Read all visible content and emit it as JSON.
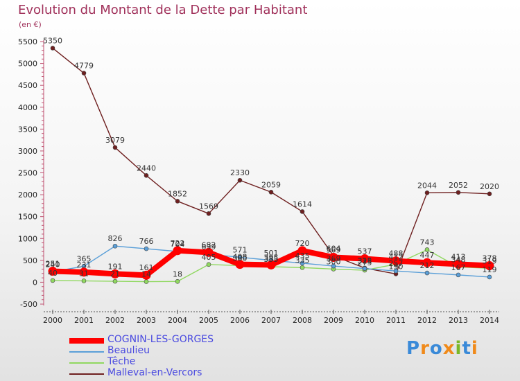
{
  "chart_data": {
    "type": "line",
    "title": "Evolution du Montant de la Dette par Habitant",
    "unit_label": "(en €)",
    "x": [
      "2000",
      "2001",
      "2002",
      "2003",
      "2004",
      "2005",
      "2006",
      "2007",
      "2008",
      "2009",
      "2010",
      "2011",
      "2012",
      "2013",
      "2014"
    ],
    "ylim": [
      -500,
      5500
    ],
    "yticks": [
      -500,
      0,
      500,
      1000,
      1500,
      2000,
      2500,
      3000,
      3500,
      4000,
      4500,
      5000,
      5500
    ],
    "grid": false,
    "legend_position": "bottom-left",
    "series": [
      {
        "name": "COGNIN-LES-GORGES",
        "color": "#ff0000",
        "values": [
          251,
          231,
          191,
          161,
          722,
          682,
          408,
          395,
          720,
          569,
          537,
          488,
          447,
          413,
          378
        ],
        "labels": [
          "251",
          "231",
          "191",
          "161",
          "722",
          "682",
          "408",
          "395",
          "720",
          "569",
          "537",
          "488",
          "447",
          "413",
          "378"
        ]
      },
      {
        "name": "Beaulieu",
        "color": "#5a9fd8",
        "values": [
          240,
          365,
          826,
          766,
          704,
          639,
          571,
          501,
          435,
          369,
          313,
          257,
          212,
          167,
          119
        ],
        "labels": [
          "240",
          "365",
          "826",
          "766",
          "704",
          "639",
          "571",
          "501",
          "435",
          "369",
          "313",
          "257",
          "212",
          "167",
          "119"
        ]
      },
      {
        "name": "Têche",
        "color": "#90d860",
        "values": [
          40,
          31,
          21,
          14,
          18,
          405,
          380,
          355,
          335,
          300,
          275,
          412,
          743,
          348,
          319
        ],
        "labels": [
          "40",
          "31",
          "21",
          "14",
          "18",
          "405",
          "380",
          "355",
          "335",
          "300",
          "275",
          "412",
          "743",
          "348",
          "319"
        ]
      },
      {
        "name": "Malleval-en-Vercors",
        "color": "#6e1f1f",
        "values": [
          5350,
          4779,
          3079,
          2440,
          1852,
          1569,
          2330,
          2059,
          1614,
          604,
          325,
          190,
          2044,
          2052,
          2020
        ],
        "labels": [
          "5350",
          "4779",
          "3079",
          "2440",
          "1852",
          "1569",
          "2330",
          "2059",
          "1614",
          "604",
          "325",
          "190",
          "2044",
          "2052",
          "2020"
        ]
      }
    ]
  },
  "logo": {
    "letters": [
      "P",
      "r",
      "o",
      "x",
      "i",
      "t",
      "i"
    ]
  }
}
